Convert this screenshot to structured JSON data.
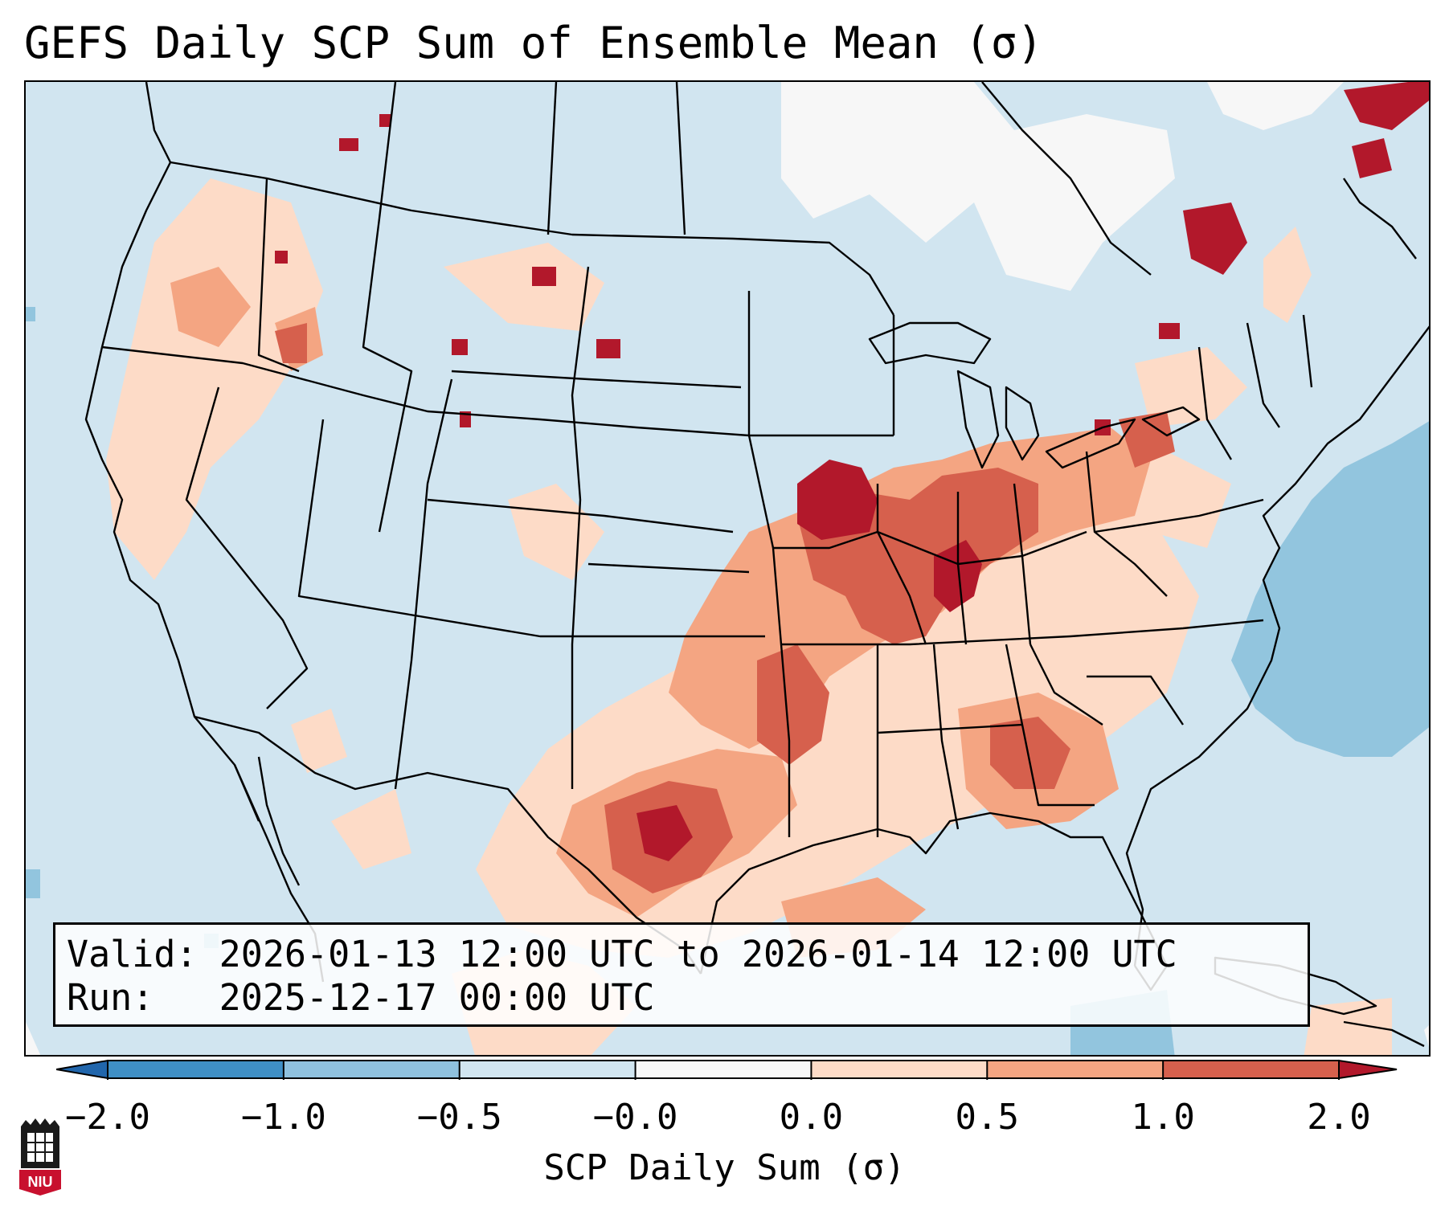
{
  "title": "GEFS Daily SCP Sum of Ensemble Mean (σ)",
  "info": {
    "valid_label": "Valid:",
    "valid_value": "2026-01-13 12:00 UTC to 2026-01-14 12:00 UTC",
    "run_label": "Run:",
    "run_value": "2025-12-17 00:00 UTC"
  },
  "colorbar": {
    "label": "SCP Daily Sum (σ)",
    "ticks": [
      "−2.0",
      "−1.0",
      "−0.5",
      "−0.0",
      "0.0",
      "0.5",
      "1.0",
      "2.0"
    ],
    "bins": [
      {
        "range": "-2.0 to -1.0",
        "color": "#3f8fc5"
      },
      {
        "range": "-1.0 to -0.5",
        "color": "#8fc1de"
      },
      {
        "range": "-0.5 to -0.0",
        "color": "#d1e5f0"
      },
      {
        "range": "-0.0 to 0.0",
        "color": "#f7f7f7"
      },
      {
        "range": "0.0 to 0.5",
        "color": "#fddbc7"
      },
      {
        "range": "0.5 to 1.0",
        "color": "#f4a582"
      },
      {
        "range": "1.0 to 2.0",
        "color": "#d6604d"
      },
      {
        "range": "> 2.0",
        "color": "#b2182b"
      }
    ],
    "extend_low_color": "#2166ac",
    "extend_high_color": "#b2182b"
  },
  "logo": {
    "text": "NIU"
  },
  "map": {
    "background_color": "#d1e5f0",
    "region": "Contiguous United States"
  }
}
